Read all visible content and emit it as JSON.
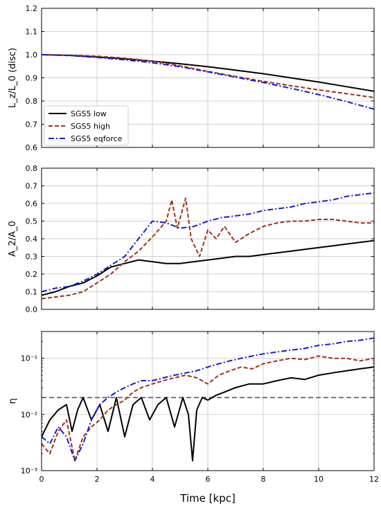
{
  "figure": {
    "xlabel": "Time [kpc]",
    "colors": {
      "low": "#000000",
      "high": "#a0301a",
      "eqforce": "#1a1ad0",
      "threshold": "#555555"
    }
  },
  "legend": {
    "placement": "lower-left of top panel",
    "entries": [
      "SGS5 low",
      "SGS5 high",
      "SGS5 eqforce"
    ]
  },
  "chart_data": [
    {
      "type": "line",
      "ylabel": "L_z/L_0 (disc)",
      "xlim": [
        0,
        12
      ],
      "ylim": [
        0.6,
        1.2
      ],
      "xticks": [
        "0",
        "2",
        "4",
        "6",
        "8",
        "10",
        "12"
      ],
      "yticks": [
        "0.6",
        "0.7",
        "0.8",
        "0.9",
        "1.0",
        "1.1",
        "1.2"
      ],
      "grid": true,
      "series": [
        {
          "name": "SGS5 low",
          "style": "solid",
          "color": "#000000",
          "x": [
            0,
            1,
            2,
            3,
            4,
            5,
            6,
            7,
            8,
            9,
            10,
            11,
            12
          ],
          "values": [
            1.0,
            0.997,
            0.99,
            0.982,
            0.972,
            0.961,
            0.948,
            0.933,
            0.918,
            0.9,
            0.882,
            0.862,
            0.842
          ]
        },
        {
          "name": "SGS5 high",
          "style": "dashed",
          "color": "#a0301a",
          "x": [
            0,
            1,
            2,
            3,
            4,
            5,
            6,
            7,
            8,
            9,
            10,
            11,
            12
          ],
          "values": [
            1.0,
            0.998,
            0.993,
            0.985,
            0.972,
            0.952,
            0.928,
            0.906,
            0.885,
            0.866,
            0.848,
            0.832,
            0.815
          ]
        },
        {
          "name": "SGS5 eqforce",
          "style": "dashdot",
          "color": "#1a1ad0",
          "x": [
            0,
            1,
            2,
            3,
            4,
            5,
            6,
            7,
            8,
            9,
            10,
            11,
            12
          ],
          "values": [
            1.0,
            0.996,
            0.988,
            0.978,
            0.965,
            0.948,
            0.926,
            0.903,
            0.88,
            0.855,
            0.828,
            0.798,
            0.765
          ]
        }
      ]
    },
    {
      "type": "line",
      "ylabel": "A_2/A_0",
      "xlim": [
        0,
        12
      ],
      "ylim": [
        0.0,
        0.8
      ],
      "xticks": [
        "0",
        "2",
        "4",
        "6",
        "8",
        "10",
        "12"
      ],
      "yticks": [
        "0.0",
        "0.1",
        "0.2",
        "0.3",
        "0.4",
        "0.5",
        "0.6",
        "0.7",
        "0.8"
      ],
      "grid": true,
      "series": [
        {
          "name": "SGS5 low",
          "style": "solid",
          "color": "#000000",
          "x": [
            0,
            0.5,
            1,
            1.5,
            2,
            2.5,
            3,
            3.5,
            4,
            4.5,
            5,
            5.5,
            6,
            6.5,
            7,
            7.5,
            8,
            8.5,
            9,
            9.5,
            10,
            10.5,
            11,
            11.5,
            12
          ],
          "values": [
            0.08,
            0.1,
            0.13,
            0.15,
            0.19,
            0.24,
            0.26,
            0.28,
            0.27,
            0.26,
            0.26,
            0.27,
            0.28,
            0.29,
            0.3,
            0.3,
            0.31,
            0.32,
            0.33,
            0.34,
            0.35,
            0.36,
            0.37,
            0.38,
            0.39
          ]
        },
        {
          "name": "SGS5 high",
          "style": "dashed",
          "color": "#a0301a",
          "x": [
            0,
            0.5,
            1,
            1.5,
            2,
            2.5,
            3,
            3.5,
            4,
            4.5,
            4.7,
            4.9,
            5.2,
            5.4,
            5.7,
            6,
            6.3,
            6.6,
            7,
            7.5,
            8,
            8.5,
            9,
            9.5,
            10,
            10.5,
            11,
            11.5,
            12
          ],
          "values": [
            0.06,
            0.07,
            0.08,
            0.1,
            0.15,
            0.2,
            0.27,
            0.33,
            0.41,
            0.5,
            0.62,
            0.46,
            0.63,
            0.4,
            0.3,
            0.45,
            0.4,
            0.47,
            0.38,
            0.43,
            0.47,
            0.49,
            0.5,
            0.5,
            0.51,
            0.51,
            0.5,
            0.49,
            0.49
          ]
        },
        {
          "name": "SGS5 eqforce",
          "style": "dashdot",
          "color": "#1a1ad0",
          "x": [
            0,
            0.5,
            1,
            1.5,
            2,
            2.5,
            3,
            3.5,
            4,
            4.5,
            5,
            5.5,
            6,
            6.5,
            7,
            7.5,
            8,
            8.5,
            9,
            9.5,
            10,
            10.5,
            11,
            11.5,
            12
          ],
          "values": [
            0.1,
            0.12,
            0.13,
            0.16,
            0.2,
            0.25,
            0.3,
            0.4,
            0.5,
            0.49,
            0.46,
            0.47,
            0.5,
            0.52,
            0.53,
            0.54,
            0.56,
            0.57,
            0.58,
            0.6,
            0.61,
            0.62,
            0.64,
            0.65,
            0.66
          ]
        }
      ]
    },
    {
      "type": "line",
      "ylabel": "η",
      "yscale": "log",
      "xlim": [
        0,
        12
      ],
      "ylim": [
        0.001,
        0.3
      ],
      "xticks": [
        "0",
        "2",
        "4",
        "6",
        "8",
        "10",
        "12"
      ],
      "yticks": [
        "10⁻³",
        "10⁻²",
        "10⁻¹"
      ],
      "grid": true,
      "threshold": {
        "y": 0.02,
        "style": "dashed",
        "color": "#555555"
      },
      "series": [
        {
          "name": "SGS5 low",
          "style": "solid",
          "color": "#000000",
          "x": [
            0,
            0.3,
            0.6,
            0.9,
            1.1,
            1.3,
            1.5,
            1.8,
            2.1,
            2.4,
            2.7,
            3.0,
            3.3,
            3.6,
            3.9,
            4.2,
            4.5,
            4.8,
            5.1,
            5.3,
            5.45,
            5.6,
            5.8,
            6.0,
            6.3,
            6.6,
            7,
            7.5,
            8,
            8.5,
            9,
            9.5,
            10,
            10.5,
            11,
            11.5,
            12
          ],
          "values": [
            0.004,
            0.008,
            0.012,
            0.015,
            0.005,
            0.012,
            0.02,
            0.008,
            0.015,
            0.005,
            0.02,
            0.004,
            0.015,
            0.02,
            0.008,
            0.015,
            0.02,
            0.006,
            0.02,
            0.01,
            0.0015,
            0.012,
            0.02,
            0.018,
            0.022,
            0.025,
            0.03,
            0.035,
            0.035,
            0.04,
            0.045,
            0.042,
            0.05,
            0.055,
            0.06,
            0.065,
            0.07
          ]
        },
        {
          "name": "SGS5 high",
          "style": "dashed",
          "color": "#a0301a",
          "x": [
            0,
            0.3,
            0.6,
            0.9,
            1.2,
            1.5,
            1.8,
            2.1,
            2.4,
            2.7,
            3.0,
            3.3,
            3.6,
            4.0,
            4.4,
            4.8,
            5.2,
            5.6,
            6.0,
            6.4,
            6.8,
            7.2,
            7.6,
            8,
            8.5,
            9,
            9.5,
            10,
            10.5,
            11,
            11.5,
            12
          ],
          "values": [
            0.003,
            0.002,
            0.005,
            0.008,
            0.0015,
            0.004,
            0.006,
            0.008,
            0.012,
            0.015,
            0.018,
            0.025,
            0.03,
            0.035,
            0.04,
            0.045,
            0.05,
            0.045,
            0.035,
            0.05,
            0.06,
            0.07,
            0.065,
            0.08,
            0.09,
            0.1,
            0.095,
            0.11,
            0.1,
            0.1,
            0.09,
            0.1
          ]
        },
        {
          "name": "SGS5 eqforce",
          "style": "dashdot",
          "color": "#1a1ad0",
          "x": [
            0,
            0.3,
            0.6,
            0.9,
            1.2,
            1.5,
            1.8,
            2.1,
            2.4,
            2.7,
            3.0,
            3.3,
            3.6,
            4.0,
            4.4,
            4.8,
            5.2,
            5.6,
            6.0,
            6.4,
            6.8,
            7.2,
            7.6,
            8,
            8.5,
            9,
            9.5,
            10,
            10.5,
            11,
            11.5,
            12
          ],
          "values": [
            0.004,
            0.003,
            0.006,
            0.004,
            0.0015,
            0.003,
            0.008,
            0.015,
            0.02,
            0.025,
            0.03,
            0.035,
            0.04,
            0.04,
            0.045,
            0.05,
            0.055,
            0.06,
            0.07,
            0.08,
            0.09,
            0.1,
            0.11,
            0.12,
            0.13,
            0.14,
            0.15,
            0.17,
            0.18,
            0.2,
            0.21,
            0.23
          ]
        }
      ]
    }
  ]
}
